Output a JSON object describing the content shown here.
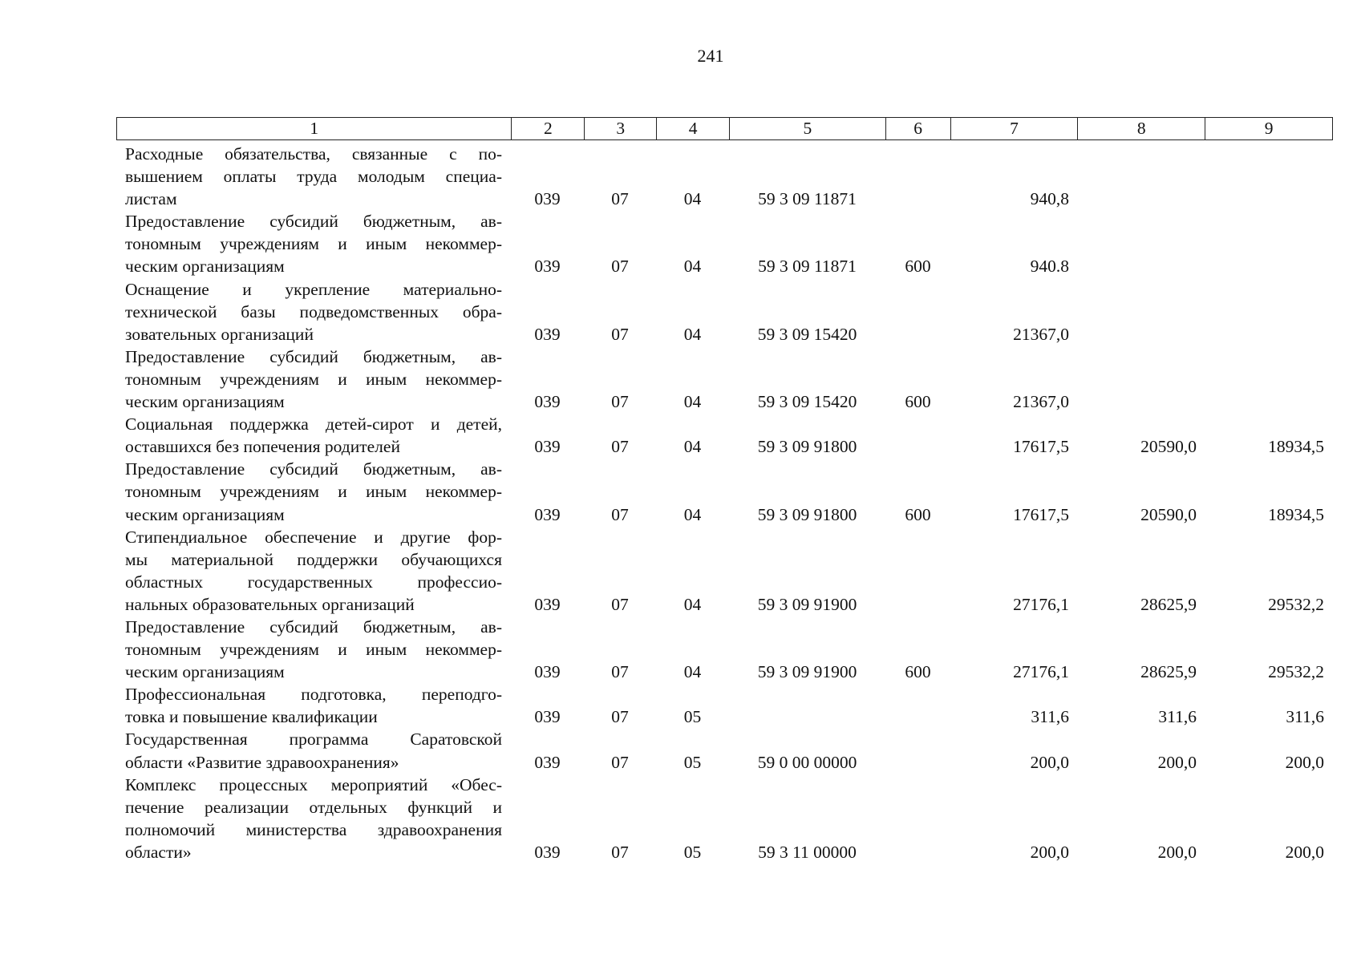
{
  "page_number": "241",
  "headers": [
    "1",
    "2",
    "3",
    "4",
    "5",
    "6",
    "7",
    "8",
    "9"
  ],
  "rows": [
    {
      "lines": [
        "Расходные обязательства, связанные с по-",
        "вышением оплаты труда молодым специа-",
        "листам"
      ],
      "c2": "039",
      "c3": "07",
      "c4": "04",
      "c5": "59 3 09 11871",
      "c6": "",
      "c7": "940,8",
      "c8": "",
      "c9": ""
    },
    {
      "lines": [
        "Предоставление субсидий бюджетным, ав-",
        "тономным учреждениям и иным некоммер-",
        "ческим организациям"
      ],
      "c2": "039",
      "c3": "07",
      "c4": "04",
      "c5": "59 3 09 11871",
      "c6": "600",
      "c7": "940.8",
      "c8": "",
      "c9": ""
    },
    {
      "lines": [
        "Оснащение и укрепление материально-",
        "технической базы подведомственных обра-",
        "зовательных организаций"
      ],
      "c2": "039",
      "c3": "07",
      "c4": "04",
      "c5": "59 3 09 15420",
      "c6": "",
      "c7": "21367,0",
      "c8": "",
      "c9": ""
    },
    {
      "lines": [
        "Предоставление субсидий бюджетным, ав-",
        "тономным учреждениям и иным некоммер-",
        "ческим организациям"
      ],
      "c2": "039",
      "c3": "07",
      "c4": "04",
      "c5": "59 3 09 15420",
      "c6": "600",
      "c7": "21367,0",
      "c8": "",
      "c9": ""
    },
    {
      "lines": [
        "Социальная поддержка детей-сирот и детей,",
        "оставшихся без попечения родителей"
      ],
      "c2": "039",
      "c3": "07",
      "c4": "04",
      "c5": "59 3 09 91800",
      "c6": "",
      "c7": "17617,5",
      "c8": "20590,0",
      "c9": "18934,5"
    },
    {
      "lines": [
        "Предоставление субсидий бюджетным, ав-",
        "тономным учреждениям и иным некоммер-",
        "ческим организациям"
      ],
      "c2": "039",
      "c3": "07",
      "c4": "04",
      "c5": "59 3 09 91800",
      "c6": "600",
      "c7": "17617,5",
      "c8": "20590,0",
      "c9": "18934,5"
    },
    {
      "lines": [
        "Стипендиальное обеспечение и другие фор-",
        "мы материальной поддержки обучающихся",
        "областных государственных профессио-",
        "нальных образовательных организаций"
      ],
      "c2": "039",
      "c3": "07",
      "c4": "04",
      "c5": "59 3 09 91900",
      "c6": "",
      "c7": "27176,1",
      "c8": "28625,9",
      "c9": "29532,2"
    },
    {
      "lines": [
        "Предоставление субсидий бюджетным, ав-",
        "тономным учреждениям и иным некоммер-",
        "ческим организациям"
      ],
      "c2": "039",
      "c3": "07",
      "c4": "04",
      "c5": "59 3 09 91900",
      "c6": "600",
      "c7": "27176,1",
      "c8": "28625,9",
      "c9": "29532,2"
    },
    {
      "lines": [
        "Профессиональная подготовка, переподго-",
        "товка и повышение квалификации"
      ],
      "c2": "039",
      "c3": "07",
      "c4": "05",
      "c5": "",
      "c6": "",
      "c7": "311,6",
      "c8": "311,6",
      "c9": "311,6"
    },
    {
      "lines": [
        "Государственная программа Саратовской",
        "области «Развитие здравоохранения»"
      ],
      "c2": "039",
      "c3": "07",
      "c4": "05",
      "c5": "59 0 00 00000",
      "c6": "",
      "c7": "200,0",
      "c8": "200,0",
      "c9": "200,0"
    },
    {
      "lines": [
        "Комплекс процессных мероприятий «Обес-",
        "печение реализации отдельных функций и",
        "полномочий министерства здравоохранения",
        "области»"
      ],
      "c2": "039",
      "c3": "07",
      "c4": "05",
      "c5": "59 3 11 00000",
      "c6": "",
      "c7": "200,0",
      "c8": "200,0",
      "c9": "200,0"
    }
  ]
}
